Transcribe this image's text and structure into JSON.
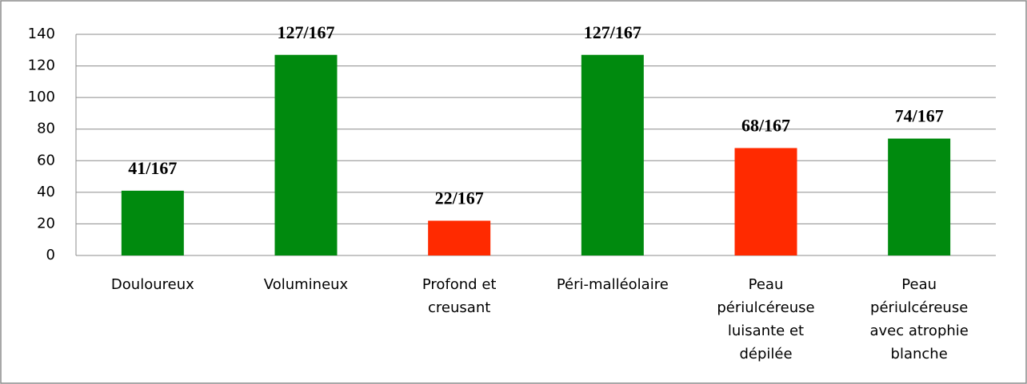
{
  "chart_data": {
    "type": "bar",
    "categories": [
      "Douloureux",
      "Volumineux",
      "Profond et creusant",
      "Péri-malléolaire",
      "Peau périulcéreuse luisante et dépilée",
      "Peau périulcéreuse avec atrophie blanche"
    ],
    "values": [
      41,
      127,
      22,
      127,
      68,
      74
    ],
    "value_labels": [
      "41/167",
      "127/167",
      "22/167",
      "127/167",
      "68/167",
      "74/167"
    ],
    "colors": [
      "#008a0e",
      "#008a0e",
      "#ff2a00",
      "#008a0e",
      "#ff2a00",
      "#008a0e"
    ],
    "ylim": [
      0,
      140
    ],
    "yticks": [
      0,
      20,
      40,
      60,
      80,
      100,
      120,
      140
    ],
    "grid": true
  }
}
